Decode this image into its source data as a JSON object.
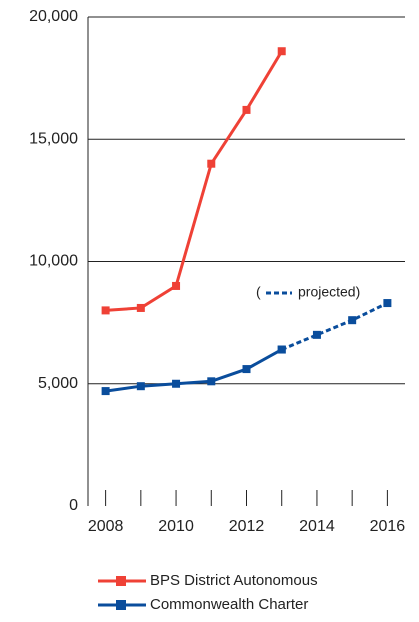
{
  "chart_data": {
    "type": "line",
    "x": [
      2008,
      2009,
      2010,
      2011,
      2012,
      2013,
      2014,
      2015,
      2016
    ],
    "xlim": [
      2007.5,
      2016.5
    ],
    "xticks": [
      2008,
      2010,
      2012,
      2014,
      2016
    ],
    "ylim": [
      0,
      20000
    ],
    "yticks": [
      0,
      {
        "value": 5000,
        "label": "5,000"
      },
      {
        "value": 10000,
        "label": "10,000"
      },
      {
        "value": 15000,
        "label": "15,000"
      },
      {
        "value": 20000,
        "label": "20,000"
      }
    ],
    "grid": true,
    "series": [
      {
        "name": "BPS District Autonomous",
        "color": "#ef4136",
        "values": [
          8000,
          8100,
          9000,
          14000,
          16200,
          18600,
          null,
          null,
          null
        ]
      },
      {
        "name": "Commonwealth Charter",
        "color": "#0a4d9c",
        "values": [
          4700,
          4900,
          5000,
          5100,
          5600,
          6400,
          null,
          null,
          null
        ]
      }
    ],
    "projected": {
      "label": [
        "(",
        "projected)"
      ],
      "color": "#0a4d9c",
      "dashed": true,
      "values": [
        null,
        null,
        null,
        null,
        null,
        6400,
        7000,
        7600,
        8300
      ]
    }
  }
}
